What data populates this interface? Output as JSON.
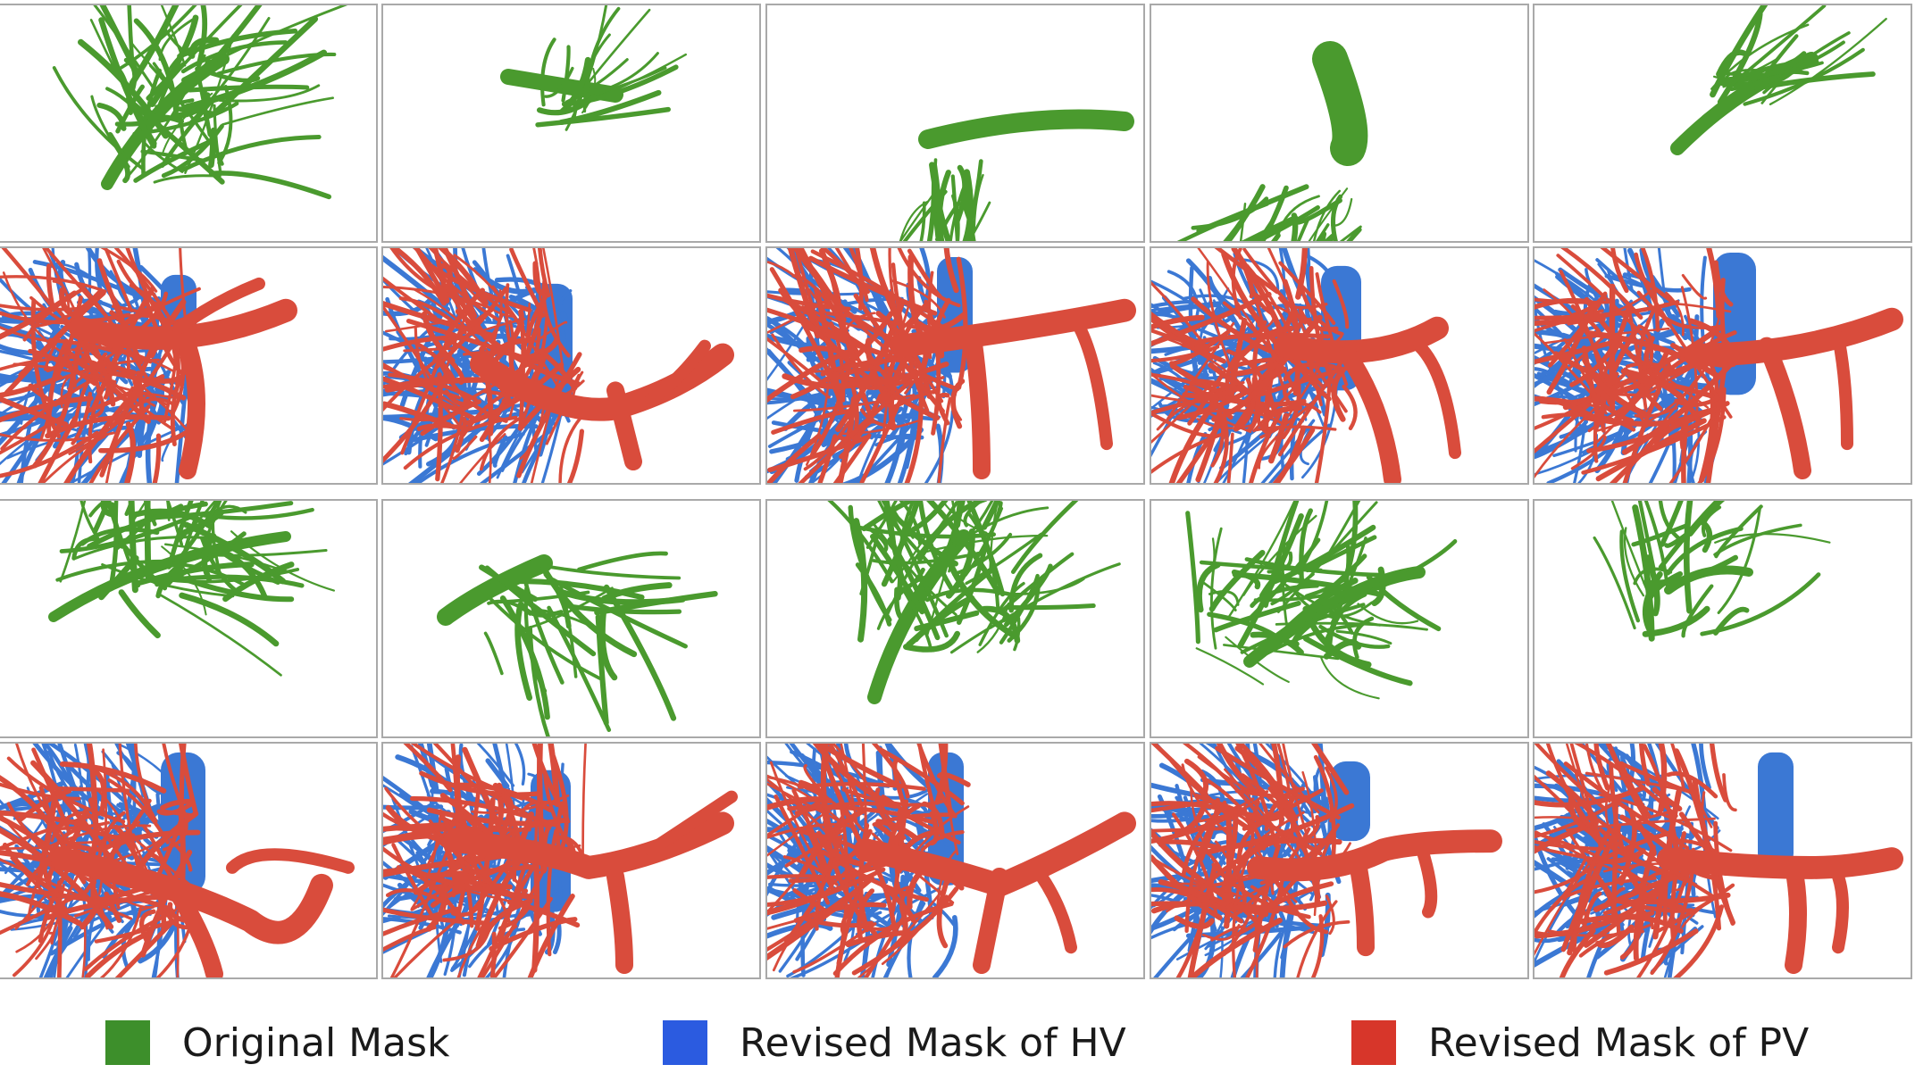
{
  "figure": {
    "rows": [
      {
        "row": 1,
        "kind": "original"
      },
      {
        "row": 2,
        "kind": "revised"
      },
      {
        "row": 3,
        "kind": "original"
      },
      {
        "row": 4,
        "kind": "revised"
      }
    ],
    "columns": 5
  },
  "legend": {
    "items": [
      {
        "label": "Original Mask",
        "color": "#3d8f2b"
      },
      {
        "label": "Revised Mask of HV",
        "color": "#2b5be0"
      },
      {
        "label": "Revised Mask of PV",
        "color": "#d7362a"
      }
    ]
  },
  "colors": {
    "green": "#4a9a2e",
    "blue": "#3b78d4",
    "red": "#d94c3c",
    "border": "#a9a9a9"
  }
}
